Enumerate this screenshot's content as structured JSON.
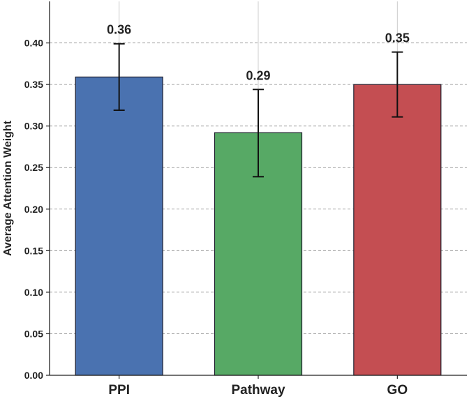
{
  "chart_data": {
    "type": "bar",
    "title": "",
    "xlabel": "",
    "ylabel": "Average Attention Weight",
    "categories": [
      "PPI",
      "Pathway",
      "GO"
    ],
    "values": [
      0.359,
      0.292,
      0.35
    ],
    "value_labels": [
      "0.36",
      "0.29",
      "0.35"
    ],
    "error_low": [
      0.319,
      0.239,
      0.311
    ],
    "error_high": [
      0.399,
      0.344,
      0.389
    ],
    "colors": [
      "#4a72b0",
      "#57a965",
      "#c44e52"
    ],
    "ylim": [
      0,
      0.45
    ],
    "yticks": [
      0.0,
      0.05,
      0.1,
      0.15,
      0.2,
      0.25,
      0.3,
      0.35,
      0.4
    ],
    "ytick_labels": [
      "0.00",
      "0.05",
      "0.10",
      "0.15",
      "0.20",
      "0.25",
      "0.30",
      "0.35",
      "0.40"
    ],
    "grid_y": true,
    "grid_x": true
  }
}
